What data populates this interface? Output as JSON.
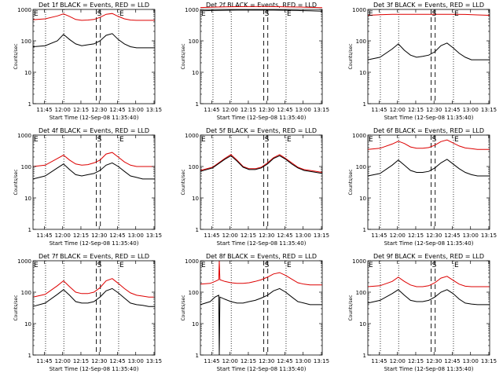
{
  "figure": {
    "x_tick_labels": [
      "11:45",
      "12:00",
      "12:15",
      "12:30",
      "12:45",
      "13:00",
      "13:15"
    ],
    "y_tick_labels": [
      "1",
      "10",
      "100",
      "1000"
    ],
    "xlabel": "Start Time (12-Sep-08 11:35:40)",
    "ylabel": "Counts/sec",
    "marker_labels": {
      "start_event": "E",
      "s_marker": "S",
      "end_event": "E"
    },
    "colors": {
      "events": "#000000",
      "lld": "#dd0000",
      "axes": "#000000"
    }
  },
  "chart_data": [
    {
      "type": "line",
      "title": "Det 1f BLACK = Events, RED = LLD",
      "x_unit": "minutes since 11:35:40",
      "x_range": [
        0,
        100
      ],
      "ylim": [
        1,
        1000
      ],
      "y_scale": "log",
      "series": [
        {
          "name": "Events",
          "color": "#000000",
          "x": [
            0,
            10,
            20,
            25,
            30,
            35,
            40,
            45,
            50,
            55,
            60,
            65,
            70,
            75,
            80,
            85,
            90,
            95,
            100
          ],
          "y": [
            65,
            70,
            100,
            160,
            110,
            80,
            70,
            75,
            80,
            100,
            150,
            170,
            110,
            80,
            65,
            60,
            60,
            60,
            60
          ]
        },
        {
          "name": "LLD",
          "color": "#dd0000",
          "x": [
            0,
            10,
            20,
            25,
            30,
            35,
            40,
            45,
            50,
            55,
            60,
            65,
            70,
            75,
            80,
            85,
            90,
            95,
            100
          ],
          "y": [
            470,
            500,
            620,
            720,
            600,
            480,
            450,
            460,
            480,
            560,
            700,
            740,
            600,
            500,
            460,
            450,
            450,
            450,
            450
          ]
        }
      ],
      "vlines_dotted": [
        10.3,
        25.3,
        70.3
      ],
      "vlines_dashed": [
        52.0,
        55.3
      ]
    },
    {
      "type": "line",
      "title": "Det 2f BLACK = Events, RED = LLD",
      "x_unit": "minutes since 11:35:40",
      "x_range": [
        0,
        100
      ],
      "ylim": [
        1,
        1000
      ],
      "y_scale": "log",
      "series": [
        {
          "name": "Events",
          "color": "#000000",
          "x": [
            0,
            10,
            20,
            30,
            40,
            50,
            60,
            70,
            80,
            90,
            100
          ],
          "y": [
            900,
            920,
            940,
            950,
            950,
            960,
            950,
            940,
            920,
            900,
            880
          ]
        },
        {
          "name": "LLD",
          "color": "#dd0000",
          "x": [
            0,
            10,
            20,
            30,
            40,
            50,
            60,
            70,
            80,
            90,
            100
          ],
          "y": [
            1150,
            1180,
            1200,
            1220,
            1230,
            1240,
            1230,
            1200,
            1190,
            1160,
            1140
          ]
        }
      ],
      "vlines_dotted": [
        10.3,
        25.3,
        70.3
      ],
      "vlines_dashed": [
        52.0,
        55.3
      ]
    },
    {
      "type": "line",
      "title": "Det 3f BLACK = Events, RED = LLD",
      "x_unit": "minutes since 11:35:40",
      "x_range": [
        0,
        100
      ],
      "ylim": [
        1,
        1000
      ],
      "y_scale": "log",
      "series": [
        {
          "name": "Events",
          "color": "#000000",
          "x": [
            0,
            10,
            20,
            25,
            30,
            35,
            40,
            45,
            50,
            55,
            60,
            65,
            70,
            75,
            80,
            85,
            90,
            95,
            100
          ],
          "y": [
            25,
            30,
            55,
            80,
            50,
            35,
            30,
            32,
            35,
            45,
            70,
            85,
            60,
            40,
            30,
            25,
            25,
            25,
            25
          ]
        },
        {
          "name": "LLD",
          "color": "#dd0000",
          "x": [
            0,
            10,
            20,
            30,
            40,
            50,
            60,
            70,
            80,
            90,
            100
          ],
          "y": [
            650,
            680,
            700,
            700,
            700,
            700,
            700,
            700,
            690,
            670,
            650
          ]
        }
      ],
      "vlines_dotted": [
        10.3,
        25.3,
        70.3
      ],
      "vlines_dashed": [
        52.0,
        55.3
      ]
    },
    {
      "type": "line",
      "title": "Det 4f BLACK = Events, RED = LLD",
      "x_unit": "minutes since 11:35:40",
      "x_range": [
        0,
        100
      ],
      "ylim": [
        1,
        1000
      ],
      "y_scale": "log",
      "series": [
        {
          "name": "Events",
          "color": "#000000",
          "x": [
            0,
            10,
            20,
            25,
            30,
            35,
            40,
            45,
            50,
            55,
            60,
            65,
            70,
            75,
            80,
            85,
            90,
            95,
            100
          ],
          "y": [
            40,
            50,
            90,
            120,
            80,
            55,
            50,
            55,
            60,
            75,
            110,
            130,
            100,
            70,
            50,
            45,
            40,
            40,
            40
          ]
        },
        {
          "name": "LLD",
          "color": "#dd0000",
          "x": [
            0,
            10,
            20,
            25,
            30,
            35,
            40,
            45,
            50,
            55,
            60,
            65,
            70,
            75,
            80,
            85,
            90,
            95,
            100
          ],
          "y": [
            100,
            110,
            180,
            230,
            160,
            120,
            110,
            115,
            130,
            160,
            250,
            280,
            200,
            140,
            110,
            100,
            100,
            100,
            100
          ]
        }
      ],
      "vlines_dotted": [
        10.3,
        25.3,
        70.3
      ],
      "vlines_dashed": [
        52.0,
        55.3
      ]
    },
    {
      "type": "line",
      "title": "Det 5f BLACK = Events, RED = LLD",
      "x_unit": "minutes since 11:35:40",
      "x_range": [
        0,
        100
      ],
      "ylim": [
        1,
        1000
      ],
      "y_scale": "log",
      "series": [
        {
          "name": "Events",
          "color": "#000000",
          "x": [
            0,
            10,
            20,
            25,
            30,
            35,
            40,
            45,
            50,
            55,
            60,
            65,
            70,
            75,
            80,
            85,
            90,
            95,
            100
          ],
          "y": [
            70,
            90,
            170,
            220,
            150,
            95,
            80,
            80,
            90,
            120,
            180,
            220,
            170,
            120,
            90,
            75,
            70,
            65,
            60
          ]
        },
        {
          "name": "LLD",
          "color": "#dd0000",
          "x": [
            0,
            10,
            20,
            25,
            30,
            35,
            40,
            45,
            50,
            55,
            60,
            65,
            70,
            75,
            80,
            85,
            90,
            95,
            100
          ],
          "y": [
            75,
            95,
            180,
            240,
            160,
            100,
            85,
            85,
            95,
            130,
            190,
            240,
            180,
            130,
            95,
            80,
            75,
            70,
            65
          ]
        }
      ],
      "vlines_dotted": [
        10.3,
        25.3,
        70.3
      ],
      "vlines_dashed": [
        52.0,
        55.3
      ]
    },
    {
      "type": "line",
      "title": "Det 6f BLACK = Events, RED = LLD",
      "x_unit": "minutes since 11:35:40",
      "x_range": [
        0,
        100
      ],
      "ylim": [
        1,
        1000
      ],
      "y_scale": "log",
      "series": [
        {
          "name": "Events",
          "color": "#000000",
          "x": [
            0,
            10,
            20,
            25,
            30,
            35,
            40,
            45,
            50,
            55,
            60,
            65,
            70,
            75,
            80,
            85,
            90,
            95,
            100
          ],
          "y": [
            50,
            60,
            110,
            160,
            110,
            75,
            65,
            65,
            70,
            90,
            130,
            170,
            120,
            85,
            65,
            55,
            50,
            50,
            50
          ]
        },
        {
          "name": "LLD",
          "color": "#dd0000",
          "x": [
            0,
            10,
            20,
            25,
            30,
            35,
            40,
            45,
            50,
            55,
            60,
            65,
            70,
            75,
            80,
            85,
            90,
            95,
            100
          ],
          "y": [
            350,
            380,
            520,
            640,
            540,
            420,
            380,
            380,
            400,
            480,
            620,
            700,
            560,
            450,
            390,
            370,
            350,
            350,
            350
          ]
        }
      ],
      "vlines_dotted": [
        10.3,
        25.3,
        70.3
      ],
      "vlines_dashed": [
        52.0,
        55.3
      ]
    },
    {
      "type": "line",
      "title": "Det 7f BLACK = Events, RED = LLD",
      "x_unit": "minutes since 11:35:40",
      "x_range": [
        0,
        100
      ],
      "ylim": [
        1,
        1000
      ],
      "y_scale": "log",
      "series": [
        {
          "name": "Events",
          "color": "#000000",
          "x": [
            0,
            10,
            20,
            25,
            30,
            35,
            40,
            45,
            50,
            55,
            60,
            65,
            70,
            75,
            80,
            85,
            90,
            95,
            100
          ],
          "y": [
            35,
            45,
            85,
            120,
            80,
            50,
            45,
            45,
            50,
            70,
            110,
            130,
            95,
            65,
            45,
            40,
            38,
            35,
            35
          ]
        },
        {
          "name": "LLD",
          "color": "#dd0000",
          "x": [
            0,
            10,
            20,
            25,
            30,
            35,
            40,
            45,
            50,
            55,
            60,
            65,
            70,
            75,
            80,
            85,
            90,
            95,
            100
          ],
          "y": [
            70,
            85,
            160,
            230,
            150,
            100,
            90,
            90,
            100,
            140,
            230,
            270,
            190,
            130,
            95,
            80,
            75,
            70,
            70
          ]
        }
      ],
      "vlines_dotted": [
        10.3,
        25.3,
        70.3
      ],
      "vlines_dashed": [
        52.0,
        55.3
      ]
    },
    {
      "type": "line",
      "title": "Det 8f BLACK = Events, RED = LLD",
      "x_unit": "minutes since 11:35:40",
      "x_range": [
        0,
        100
      ],
      "ylim": [
        1,
        1000
      ],
      "y_scale": "log",
      "series": [
        {
          "name": "Events",
          "color": "#000000",
          "x": [
            0,
            8,
            12,
            15,
            15.5,
            16,
            20,
            25,
            30,
            35,
            40,
            45,
            50,
            55,
            60,
            65,
            70,
            75,
            80,
            85,
            90,
            95,
            100
          ],
          "y": [
            40,
            50,
            70,
            80,
            1,
            70,
            60,
            50,
            45,
            45,
            50,
            55,
            65,
            80,
            110,
            130,
            100,
            70,
            50,
            45,
            40,
            40,
            40
          ]
        },
        {
          "name": "LLD",
          "color": "#dd0000",
          "x": [
            0,
            8,
            12,
            15,
            15.5,
            16,
            20,
            25,
            30,
            35,
            40,
            45,
            50,
            55,
            60,
            65,
            70,
            75,
            80,
            85,
            90,
            95,
            100
          ],
          "y": [
            180,
            190,
            220,
            250,
            1000,
            250,
            220,
            200,
            190,
            190,
            200,
            220,
            250,
            300,
            380,
            420,
            340,
            260,
            200,
            180,
            170,
            170,
            170
          ]
        }
      ],
      "vlines_dotted": [
        10.3,
        25.3,
        70.3
      ],
      "vlines_dashed": [
        52.0,
        55.3
      ]
    },
    {
      "type": "line",
      "title": "Det 9f BLACK = Events, RED = LLD",
      "x_unit": "minutes since 11:35:40",
      "x_range": [
        0,
        100
      ],
      "ylim": [
        1,
        1000
      ],
      "y_scale": "log",
      "series": [
        {
          "name": "Events",
          "color": "#000000",
          "x": [
            0,
            10,
            20,
            25,
            30,
            35,
            40,
            45,
            50,
            55,
            60,
            65,
            70,
            75,
            80,
            85,
            90,
            95,
            100
          ],
          "y": [
            45,
            55,
            90,
            120,
            80,
            55,
            50,
            50,
            55,
            70,
            100,
            120,
            90,
            60,
            45,
            42,
            40,
            40,
            40
          ]
        },
        {
          "name": "LLD",
          "color": "#dd0000",
          "x": [
            0,
            10,
            20,
            25,
            30,
            35,
            40,
            45,
            50,
            55,
            60,
            65,
            70,
            75,
            80,
            85,
            90,
            95,
            100
          ],
          "y": [
            150,
            160,
            220,
            300,
            220,
            170,
            150,
            150,
            160,
            200,
            280,
            320,
            240,
            180,
            155,
            150,
            150,
            150,
            150
          ]
        }
      ],
      "vlines_dotted": [
        10.3,
        25.3,
        70.3
      ],
      "vlines_dashed": [
        52.0,
        55.3
      ]
    }
  ]
}
